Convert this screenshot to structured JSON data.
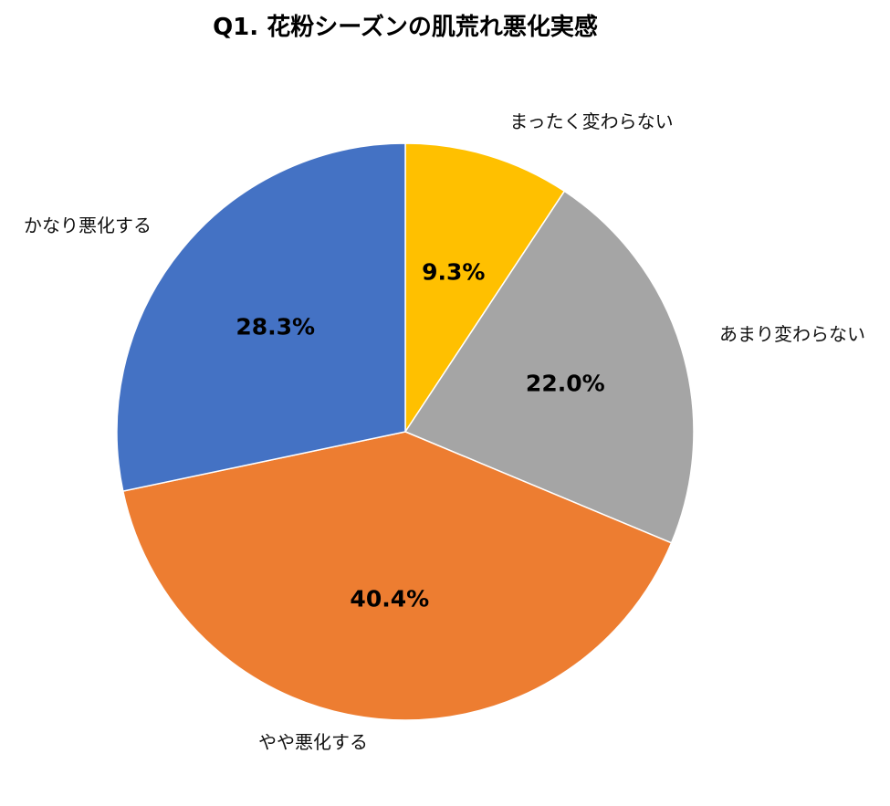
{
  "chart_data": {
    "type": "pie",
    "title": "Q1. 花粉シーズンの肌荒れ悪化実感",
    "start_angle_deg": 0,
    "direction": "clockwise",
    "slices": [
      {
        "label": "まったく変わらない",
        "value": 9.3,
        "display": "9.3%",
        "color": "#FFC000"
      },
      {
        "label": "あまり変わらない",
        "value": 22.0,
        "display": "22.0%",
        "color": "#A5A5A5"
      },
      {
        "label": "やや悪化する",
        "value": 40.4,
        "display": "40.4%",
        "color": "#ED7D31"
      },
      {
        "label": "かなり悪化する",
        "value": 28.3,
        "display": "28.3%",
        "color": "#4472C4"
      }
    ]
  }
}
